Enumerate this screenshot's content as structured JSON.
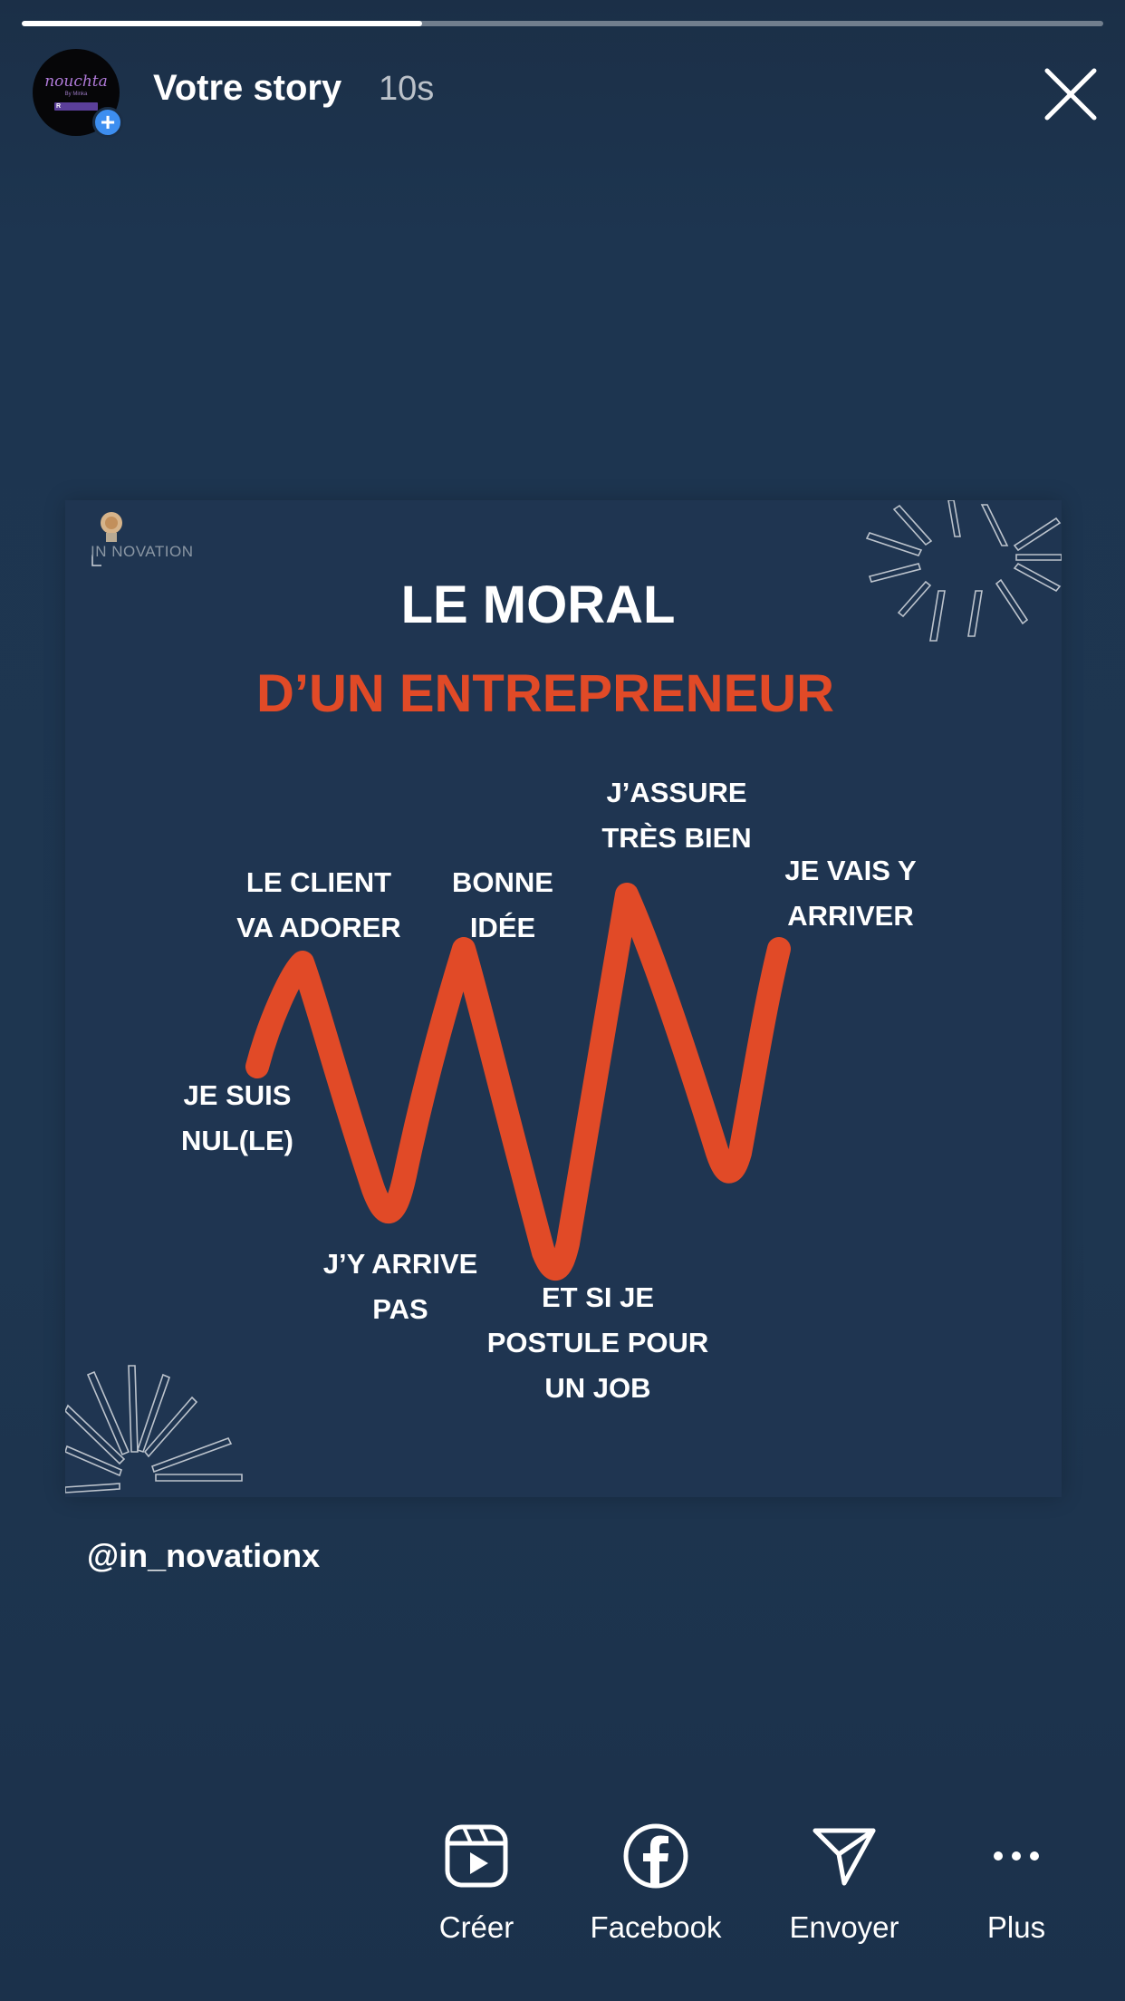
{
  "story": {
    "progress": 0.37,
    "title": "Votre story",
    "time": "10s"
  },
  "avatar": {
    "brand": "nouchta",
    "sub": "By Minka",
    "mark": "R",
    "add": "+"
  },
  "post": {
    "logo": "IN NOVATION",
    "title_line1": "LE MORAL",
    "title_line2": "D’UN ENTREPRENEUR",
    "accent_color": "#e14a27",
    "labels": {
      "suis_nul_1": "JE SUIS",
      "suis_nul_2": "NUL(LE)",
      "client_1": "LE CLIENT",
      "client_2": "VA ADORER",
      "arrive_pas_1": "J’Y ARRIVE",
      "arrive_pas_2": "PAS",
      "bonne_idee_1": "BONNE",
      "bonne_idee_2": "IDÉE",
      "job_1": "ET SI JE",
      "job_2": "POSTULE POUR",
      "job_3": "UN JOB",
      "assure_1": "J’ASSURE",
      "assure_2": "TRÈS BIEN",
      "arriver_1": "JE VAIS Y",
      "arriver_2": "ARRIVER"
    }
  },
  "mention": "@in_novationx",
  "actions": [
    {
      "label": "Créer",
      "icon": "reels-icon"
    },
    {
      "label": "Facebook",
      "icon": "facebook-icon"
    },
    {
      "label": "Envoyer",
      "icon": "send-icon"
    },
    {
      "label": "Plus",
      "icon": "more-icon"
    }
  ]
}
